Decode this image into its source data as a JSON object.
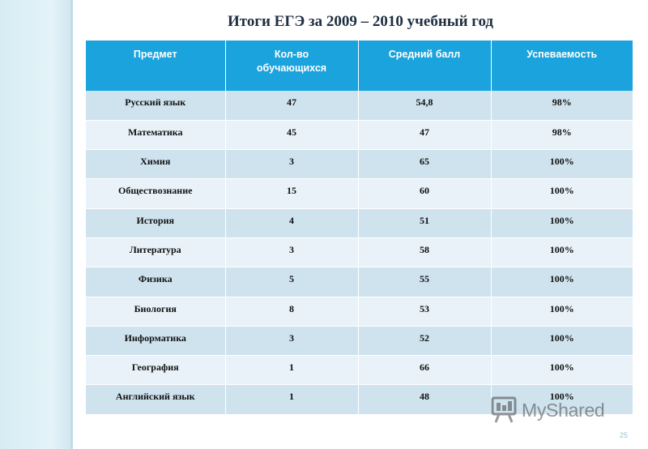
{
  "slide": {
    "title": "Итоги ЕГЭ за 2009 – 2010 учебный год",
    "page_number": "25"
  },
  "table": {
    "headers": [
      "Предмет",
      "Кол-во обучающихся",
      "Средний балл",
      "Успеваемость"
    ],
    "rows": [
      [
        "Русский язык",
        "47",
        "54,8",
        "98%"
      ],
      [
        "Математика",
        "45",
        "47",
        "98%"
      ],
      [
        "Химия",
        "3",
        "65",
        "100%"
      ],
      [
        "Обществознание",
        "15",
        "60",
        "100%"
      ],
      [
        "История",
        "4",
        "51",
        "100%"
      ],
      [
        "Литература",
        "3",
        "58",
        "100%"
      ],
      [
        "Физика",
        "5",
        "55",
        "100%"
      ],
      [
        "Биология",
        "8",
        "53",
        "100%"
      ],
      [
        "Информатика",
        "3",
        "52",
        "100%"
      ],
      [
        "География",
        "1",
        "66",
        "100%"
      ],
      [
        "Английский язык",
        "1",
        "48",
        "100%"
      ]
    ]
  },
  "watermark": {
    "text": "MyShared"
  },
  "colors": {
    "header_bg": "#1aa3dd",
    "row_dark": "#cfe3ef",
    "row_light": "#e8f2f8"
  }
}
